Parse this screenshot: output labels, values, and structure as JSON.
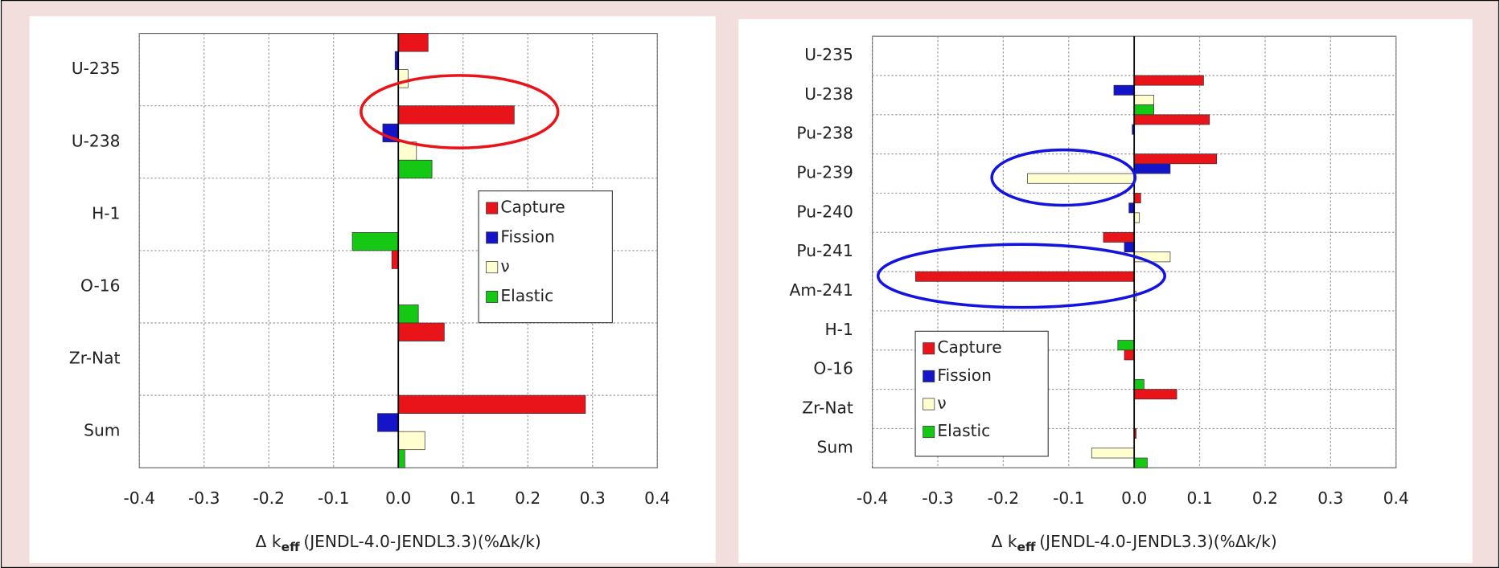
{
  "chart_data": [
    {
      "type": "hbar",
      "x_label": {
        "symbol": "Δ k",
        "subscript": "eff",
        "text": "(JENDL-4.0-JENDL3.3)(%Δk/k)"
      },
      "categories": [
        "U-235",
        "U-238",
        "H-1",
        "O-16",
        "Zr-Nat",
        "Sum"
      ],
      "series": [
        {
          "name": "Capture",
          "color": "#e8141a",
          "values": [
            0.046,
            0.179,
            0,
            -0.01,
            0.071,
            0.289
          ]
        },
        {
          "name": "Fission",
          "color": "#1414c8",
          "values": [
            -0.005,
            -0.024,
            0,
            0,
            0,
            -0.032
          ]
        },
        {
          "name": "ν",
          "color": "#ffffd0",
          "values": [
            0.015,
            0.028,
            0,
            0,
            0,
            0.041
          ]
        },
        {
          "name": "Elastic",
          "color": "#14c814",
          "values": [
            0,
            0.052,
            -0.071,
            0.031,
            0,
            0.01
          ]
        }
      ],
      "xlim": [
        -0.4,
        0.4
      ],
      "xticks": [
        -0.4,
        -0.3,
        -0.2,
        -0.1,
        {
          "value": 0,
          "label": "0.0"
        },
        0.1,
        0.2,
        0.3,
        0.4
      ],
      "grid": true,
      "legend_position": "center right"
    },
    {
      "type": "hbar",
      "x_label": {
        "symbol": "Δ k",
        "subscript": "eff",
        "text": "(JENDL-4.0-JENDL3.3)(%Δk/k)"
      },
      "categories": [
        "U-235",
        "U-238",
        "Pu-238",
        "Pu-239",
        "Pu-240",
        "Pu-241",
        "Am-241",
        "H-1",
        "O-16",
        "Zr-Nat",
        "Sum"
      ],
      "series": [
        {
          "name": "Capture",
          "color": "#e8141a",
          "values": [
            0,
            0.106,
            0.115,
            0.126,
            0.01,
            -0.047,
            -0.334,
            0,
            -0.015,
            0.065,
            0.003
          ]
        },
        {
          "name": "Fission",
          "color": "#1414c8",
          "values": [
            0,
            -0.031,
            -0.003,
            0.055,
            -0.008,
            -0.015,
            0,
            0,
            0,
            0,
            0
          ]
        },
        {
          "name": "ν",
          "color": "#ffffd0",
          "values": [
            0,
            0.03,
            0,
            -0.163,
            0.008,
            0.055,
            0.003,
            0,
            0,
            0,
            -0.065
          ]
        },
        {
          "name": "Elastic",
          "color": "#14c814",
          "values": [
            0,
            0.03,
            0,
            0,
            0,
            0,
            0,
            -0.025,
            0.015,
            0,
            0.02
          ]
        }
      ],
      "xlim": [
        -0.4,
        0.4
      ],
      "xticks": [
        -0.4,
        -0.3,
        -0.2,
        -0.1,
        {
          "value": 0,
          "label": "0.0"
        },
        0.1,
        0.2,
        0.3,
        0.4
      ],
      "grid": true,
      "legend_position": "lower left"
    }
  ]
}
